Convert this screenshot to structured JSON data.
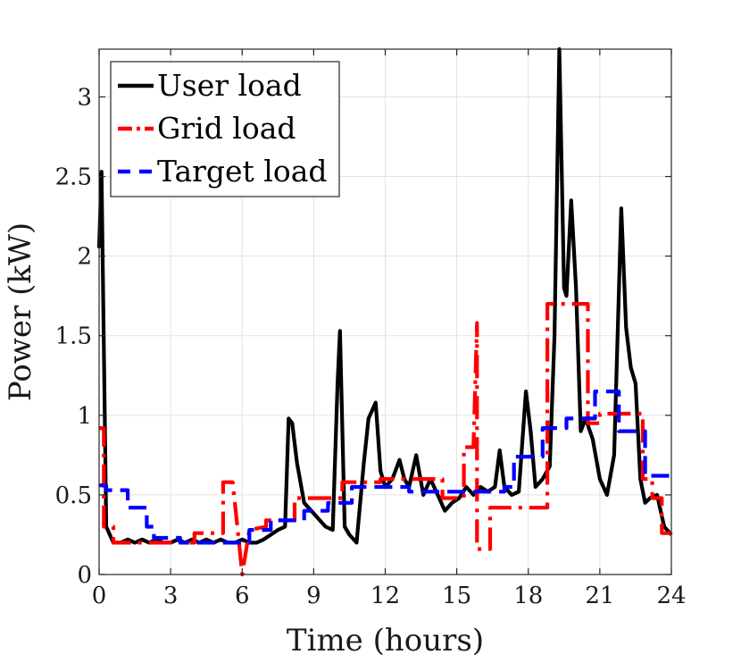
{
  "chart_data": {
    "type": "line",
    "title": "",
    "xlabel": "Time (hours)",
    "ylabel": "Power (kW)",
    "xlim": [
      0,
      24
    ],
    "ylim": [
      0,
      3.3
    ],
    "xticks": [
      0,
      3,
      6,
      9,
      12,
      15,
      18,
      21,
      24
    ],
    "yticks": [
      0,
      0.5,
      1,
      1.5,
      2,
      2.5,
      3
    ],
    "xtick_labels": [
      "0",
      "3",
      "6",
      "9",
      "12",
      "15",
      "18",
      "21",
      "24"
    ],
    "ytick_labels": [
      "0",
      "0.5",
      "1",
      "1.5",
      "2",
      "2.5",
      "3"
    ],
    "grid": true,
    "legend_position": "top-left",
    "series": [
      {
        "name": "User load",
        "color": "#000000",
        "style": "solid",
        "x": [
          0,
          0.1,
          0.3,
          0.6,
          0.9,
          1.2,
          1.5,
          1.8,
          2.1,
          2.4,
          2.7,
          3,
          3.3,
          3.6,
          3.9,
          4.2,
          4.5,
          4.8,
          5.1,
          5.4,
          5.7,
          6,
          6.3,
          6.6,
          6.9,
          7.2,
          7.5,
          7.8,
          7.95,
          8.1,
          8.3,
          8.6,
          8.9,
          9.2,
          9.5,
          9.8,
          10.0,
          10.1,
          10.3,
          10.5,
          10.8,
          11.1,
          11.3,
          11.6,
          11.8,
          12.0,
          12.3,
          12.6,
          12.8,
          13.0,
          13.3,
          13.6,
          13.9,
          14.2,
          14.5,
          14.8,
          15.1,
          15.4,
          15.7,
          16.0,
          16.3,
          16.6,
          16.8,
          17.0,
          17.3,
          17.6,
          17.9,
          18.1,
          18.3,
          18.6,
          18.9,
          19.1,
          19.3,
          19.5,
          19.6,
          19.8,
          20.0,
          20.2,
          20.4,
          20.7,
          21.0,
          21.3,
          21.6,
          21.9,
          22.1,
          22.3,
          22.5,
          22.7,
          22.9,
          23.1,
          23.4,
          23.7,
          24
        ],
        "y": [
          2.05,
          2.53,
          0.3,
          0.2,
          0.2,
          0.22,
          0.2,
          0.22,
          0.2,
          0.22,
          0.2,
          0.2,
          0.22,
          0.2,
          0.22,
          0.2,
          0.22,
          0.2,
          0.22,
          0.2,
          0.2,
          0.22,
          0.2,
          0.2,
          0.22,
          0.25,
          0.28,
          0.3,
          0.98,
          0.95,
          0.7,
          0.45,
          0.4,
          0.35,
          0.3,
          0.28,
          1.2,
          1.53,
          0.3,
          0.25,
          0.2,
          0.7,
          0.98,
          1.08,
          0.65,
          0.55,
          0.6,
          0.72,
          0.6,
          0.55,
          0.75,
          0.5,
          0.6,
          0.5,
          0.4,
          0.45,
          0.48,
          0.55,
          0.5,
          0.55,
          0.52,
          0.55,
          0.78,
          0.55,
          0.5,
          0.52,
          1.15,
          0.9,
          0.55,
          0.6,
          0.68,
          1.5,
          3.3,
          1.8,
          1.75,
          2.35,
          1.8,
          0.9,
          0.98,
          0.85,
          0.6,
          0.5,
          0.75,
          2.3,
          1.55,
          1.3,
          1.2,
          0.6,
          0.45,
          0.48,
          0.5,
          0.3,
          0.25
        ]
      },
      {
        "name": "Grid load",
        "color": "#ff0000",
        "style": "dashdot",
        "x": [
          0,
          0.2,
          0.2,
          0.6,
          0.6,
          1.2,
          1.2,
          2.5,
          2.5,
          4.0,
          4.0,
          5.2,
          5.2,
          5.6,
          5.8,
          6.0,
          6.3,
          6.3,
          7.0,
          7.0,
          8.2,
          8.2,
          10.2,
          10.2,
          11.8,
          11.8,
          14.4,
          14.4,
          15.3,
          15.3,
          15.7,
          15.85,
          15.85,
          16.4,
          16.4,
          18.8,
          18.8,
          20.5,
          20.5,
          21.0,
          21.0,
          22.8,
          22.8,
          23.2,
          23.2,
          23.6,
          23.6,
          24
        ],
        "y": [
          0.92,
          0.92,
          0.3,
          0.3,
          0.2,
          0.2,
          0.2,
          0.2,
          0.2,
          0.2,
          0.26,
          0.26,
          0.58,
          0.58,
          0.3,
          0.0,
          0.28,
          0.28,
          0.3,
          0.34,
          0.34,
          0.48,
          0.48,
          0.58,
          0.58,
          0.6,
          0.6,
          0.48,
          0.48,
          0.8,
          0.8,
          1.58,
          0.16,
          0.16,
          0.42,
          0.42,
          1.7,
          1.7,
          0.95,
          0.95,
          1.01,
          1.01,
          0.6,
          0.6,
          0.48,
          0.48,
          0.26,
          0.26
        ]
      },
      {
        "name": "Target load",
        "color": "#0000ff",
        "style": "dashed",
        "x": [
          0,
          0.3,
          0.3,
          1.2,
          1.2,
          2.0,
          2.0,
          2.3,
          2.3,
          3.4,
          3.4,
          6.3,
          6.3,
          7.2,
          7.2,
          8.6,
          8.6,
          9.6,
          9.6,
          10.6,
          10.6,
          13.0,
          13.0,
          17.0,
          17.0,
          17.4,
          17.4,
          18.6,
          18.6,
          19.6,
          19.6,
          20.8,
          20.8,
          21.8,
          21.8,
          22.9,
          22.9,
          24
        ],
        "y": [
          0.56,
          0.56,
          0.53,
          0.53,
          0.42,
          0.42,
          0.3,
          0.3,
          0.23,
          0.23,
          0.2,
          0.2,
          0.28,
          0.28,
          0.34,
          0.34,
          0.4,
          0.4,
          0.45,
          0.45,
          0.55,
          0.55,
          0.52,
          0.52,
          0.55,
          0.55,
          0.74,
          0.74,
          0.92,
          0.92,
          0.98,
          0.98,
          1.15,
          1.15,
          0.9,
          0.9,
          0.62,
          0.62
        ]
      }
    ]
  }
}
